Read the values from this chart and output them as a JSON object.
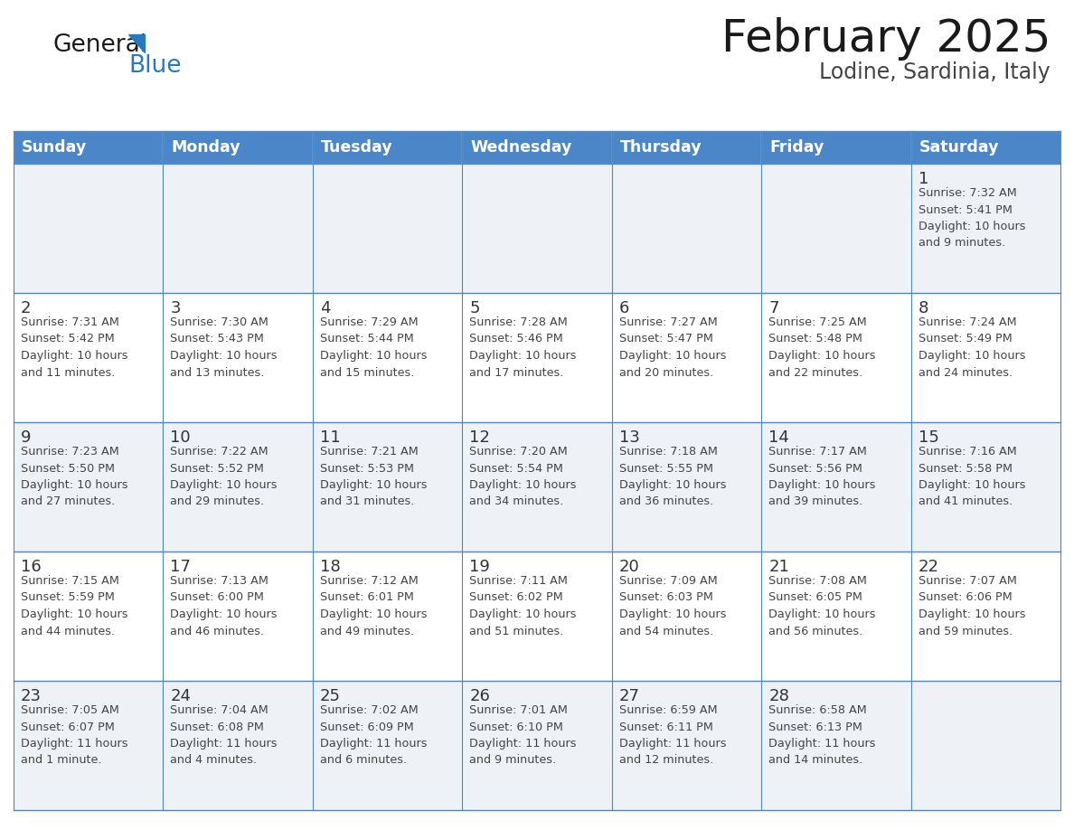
{
  "title": "February 2025",
  "subtitle": "Lodine, Sardinia, Italy",
  "header_bg": "#4a86c8",
  "header_text": "#ffffff",
  "header_days": [
    "Sunday",
    "Monday",
    "Tuesday",
    "Wednesday",
    "Thursday",
    "Friday",
    "Saturday"
  ],
  "row_bg_even": "#eef2f7",
  "row_bg_odd": "#ffffff",
  "cell_border": "#4a86c8",
  "day_number_color": "#333333",
  "text_color": "#444444",
  "title_color": "#1a1a1a",
  "subtitle_color": "#444444",
  "logo_general_color": "#1a1a1a",
  "logo_blue_color": "#2979c0",
  "weeks": [
    [
      {
        "day": null,
        "info": null
      },
      {
        "day": null,
        "info": null
      },
      {
        "day": null,
        "info": null
      },
      {
        "day": null,
        "info": null
      },
      {
        "day": null,
        "info": null
      },
      {
        "day": null,
        "info": null
      },
      {
        "day": 1,
        "info": "Sunrise: 7:32 AM\nSunset: 5:41 PM\nDaylight: 10 hours\nand 9 minutes."
      }
    ],
    [
      {
        "day": 2,
        "info": "Sunrise: 7:31 AM\nSunset: 5:42 PM\nDaylight: 10 hours\nand 11 minutes."
      },
      {
        "day": 3,
        "info": "Sunrise: 7:30 AM\nSunset: 5:43 PM\nDaylight: 10 hours\nand 13 minutes."
      },
      {
        "day": 4,
        "info": "Sunrise: 7:29 AM\nSunset: 5:44 PM\nDaylight: 10 hours\nand 15 minutes."
      },
      {
        "day": 5,
        "info": "Sunrise: 7:28 AM\nSunset: 5:46 PM\nDaylight: 10 hours\nand 17 minutes."
      },
      {
        "day": 6,
        "info": "Sunrise: 7:27 AM\nSunset: 5:47 PM\nDaylight: 10 hours\nand 20 minutes."
      },
      {
        "day": 7,
        "info": "Sunrise: 7:25 AM\nSunset: 5:48 PM\nDaylight: 10 hours\nand 22 minutes."
      },
      {
        "day": 8,
        "info": "Sunrise: 7:24 AM\nSunset: 5:49 PM\nDaylight: 10 hours\nand 24 minutes."
      }
    ],
    [
      {
        "day": 9,
        "info": "Sunrise: 7:23 AM\nSunset: 5:50 PM\nDaylight: 10 hours\nand 27 minutes."
      },
      {
        "day": 10,
        "info": "Sunrise: 7:22 AM\nSunset: 5:52 PM\nDaylight: 10 hours\nand 29 minutes."
      },
      {
        "day": 11,
        "info": "Sunrise: 7:21 AM\nSunset: 5:53 PM\nDaylight: 10 hours\nand 31 minutes."
      },
      {
        "day": 12,
        "info": "Sunrise: 7:20 AM\nSunset: 5:54 PM\nDaylight: 10 hours\nand 34 minutes."
      },
      {
        "day": 13,
        "info": "Sunrise: 7:18 AM\nSunset: 5:55 PM\nDaylight: 10 hours\nand 36 minutes."
      },
      {
        "day": 14,
        "info": "Sunrise: 7:17 AM\nSunset: 5:56 PM\nDaylight: 10 hours\nand 39 minutes."
      },
      {
        "day": 15,
        "info": "Sunrise: 7:16 AM\nSunset: 5:58 PM\nDaylight: 10 hours\nand 41 minutes."
      }
    ],
    [
      {
        "day": 16,
        "info": "Sunrise: 7:15 AM\nSunset: 5:59 PM\nDaylight: 10 hours\nand 44 minutes."
      },
      {
        "day": 17,
        "info": "Sunrise: 7:13 AM\nSunset: 6:00 PM\nDaylight: 10 hours\nand 46 minutes."
      },
      {
        "day": 18,
        "info": "Sunrise: 7:12 AM\nSunset: 6:01 PM\nDaylight: 10 hours\nand 49 minutes."
      },
      {
        "day": 19,
        "info": "Sunrise: 7:11 AM\nSunset: 6:02 PM\nDaylight: 10 hours\nand 51 minutes."
      },
      {
        "day": 20,
        "info": "Sunrise: 7:09 AM\nSunset: 6:03 PM\nDaylight: 10 hours\nand 54 minutes."
      },
      {
        "day": 21,
        "info": "Sunrise: 7:08 AM\nSunset: 6:05 PM\nDaylight: 10 hours\nand 56 minutes."
      },
      {
        "day": 22,
        "info": "Sunrise: 7:07 AM\nSunset: 6:06 PM\nDaylight: 10 hours\nand 59 minutes."
      }
    ],
    [
      {
        "day": 23,
        "info": "Sunrise: 7:05 AM\nSunset: 6:07 PM\nDaylight: 11 hours\nand 1 minute."
      },
      {
        "day": 24,
        "info": "Sunrise: 7:04 AM\nSunset: 6:08 PM\nDaylight: 11 hours\nand 4 minutes."
      },
      {
        "day": 25,
        "info": "Sunrise: 7:02 AM\nSunset: 6:09 PM\nDaylight: 11 hours\nand 6 minutes."
      },
      {
        "day": 26,
        "info": "Sunrise: 7:01 AM\nSunset: 6:10 PM\nDaylight: 11 hours\nand 9 minutes."
      },
      {
        "day": 27,
        "info": "Sunrise: 6:59 AM\nSunset: 6:11 PM\nDaylight: 11 hours\nand 12 minutes."
      },
      {
        "day": 28,
        "info": "Sunrise: 6:58 AM\nSunset: 6:13 PM\nDaylight: 11 hours\nand 14 minutes."
      },
      {
        "day": null,
        "info": null
      }
    ]
  ],
  "fig_width": 11.88,
  "fig_height": 9.18,
  "dpi": 100
}
